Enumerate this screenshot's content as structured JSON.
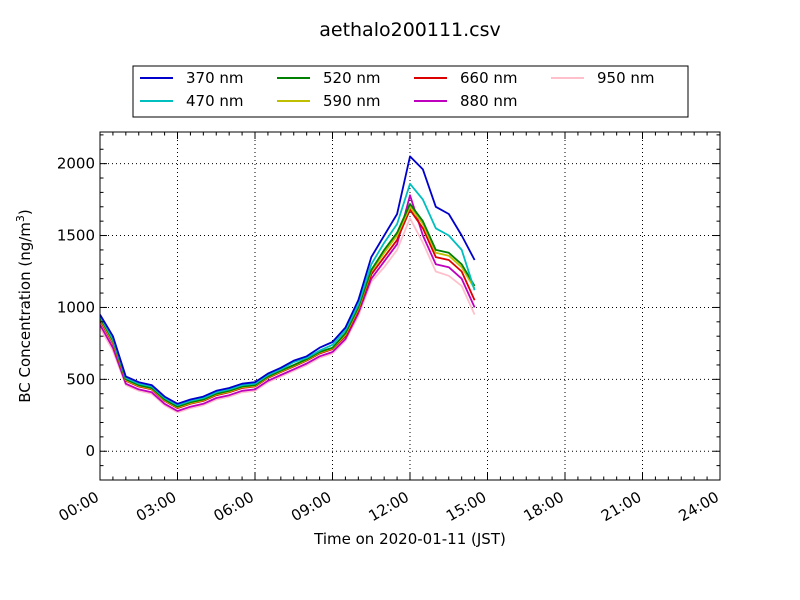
{
  "chart_data": {
    "type": "line",
    "title": "aethalo200111.csv",
    "xlabel": "Time on 2020-01-11 (JST)",
    "ylabel_main": "BC Concentration (ng/m",
    "ylabel_sup": "3",
    "ylabel_end": ")",
    "xlim": [
      0,
      24
    ],
    "ylim": [
      -200,
      2220
    ],
    "x_ticks": [
      0,
      3,
      6,
      9,
      12,
      15,
      18,
      21,
      24
    ],
    "x_tick_labels": [
      "00:00",
      "03:00",
      "06:00",
      "09:00",
      "12:00",
      "15:00",
      "18:00",
      "21:00",
      "24:00"
    ],
    "y_ticks": [
      0,
      500,
      1000,
      1500,
      2000
    ],
    "y_tick_labels": [
      "0",
      "500",
      "1000",
      "1500",
      "2000"
    ],
    "grid": true,
    "legend_position": "top",
    "x_hours": [
      0.0,
      0.5,
      1.0,
      1.5,
      2.0,
      2.5,
      3.0,
      3.5,
      4.0,
      4.5,
      5.0,
      5.5,
      6.0,
      6.5,
      7.0,
      7.5,
      8.0,
      8.5,
      9.0,
      9.5,
      10.0,
      10.5,
      11.0,
      11.5,
      12.0,
      12.5,
      13.0,
      13.5,
      14.0,
      14.5
    ],
    "series": [
      {
        "name": "370 nm",
        "color": "#0000cc",
        "values": [
          950,
          800,
          520,
          480,
          460,
          380,
          330,
          360,
          380,
          420,
          440,
          470,
          480,
          540,
          580,
          630,
          660,
          720,
          760,
          860,
          1050,
          1350,
          1500,
          1650,
          2050,
          1960,
          1700,
          1650,
          1500,
          1330
        ]
      },
      {
        "name": "470 nm",
        "color": "#00bfbf",
        "values": [
          940,
          780,
          510,
          470,
          450,
          370,
          320,
          350,
          370,
          410,
          430,
          460,
          470,
          530,
          570,
          620,
          650,
          700,
          740,
          840,
          1020,
          1300,
          1450,
          1580,
          1860,
          1750,
          1550,
          1500,
          1400,
          1120
        ]
      },
      {
        "name": "520 nm",
        "color": "#008000",
        "values": [
          930,
          770,
          500,
          460,
          440,
          360,
          310,
          340,
          360,
          400,
          420,
          450,
          460,
          520,
          560,
          600,
          640,
          690,
          720,
          820,
          1000,
          1260,
          1400,
          1520,
          1720,
          1600,
          1400,
          1380,
          1300,
          1150
        ]
      },
      {
        "name": "590 nm",
        "color": "#bfbf00",
        "values": [
          920,
          760,
          495,
          455,
          435,
          355,
          305,
          335,
          355,
          395,
          415,
          445,
          455,
          515,
          555,
          595,
          635,
          685,
          715,
          810,
          990,
          1250,
          1380,
          1500,
          1700,
          1580,
          1380,
          1360,
          1280,
          1130
        ]
      },
      {
        "name": "660 nm",
        "color": "#dd0000",
        "values": [
          910,
          750,
          490,
          450,
          430,
          350,
          300,
          330,
          350,
          390,
          410,
          440,
          450,
          510,
          550,
          590,
          630,
          680,
          710,
          800,
          980,
          1230,
          1350,
          1470,
          1680,
          1550,
          1350,
          1330,
          1250,
          1050
        ]
      },
      {
        "name": "880 nm",
        "color": "#bf00bf",
        "values": [
          880,
          720,
          470,
          430,
          410,
          330,
          280,
          310,
          330,
          370,
          390,
          420,
          430,
          490,
          530,
          570,
          610,
          660,
          690,
          780,
          960,
          1200,
          1320,
          1440,
          1780,
          1500,
          1300,
          1280,
          1200,
          1000
        ]
      },
      {
        "name": "950 nm",
        "color": "#ffc0cb",
        "values": [
          860,
          700,
          460,
          420,
          400,
          320,
          270,
          300,
          320,
          360,
          380,
          410,
          420,
          480,
          520,
          560,
          600,
          650,
          680,
          770,
          940,
          1180,
          1280,
          1400,
          1620,
          1450,
          1250,
          1220,
          1150,
          950
        ]
      }
    ]
  }
}
